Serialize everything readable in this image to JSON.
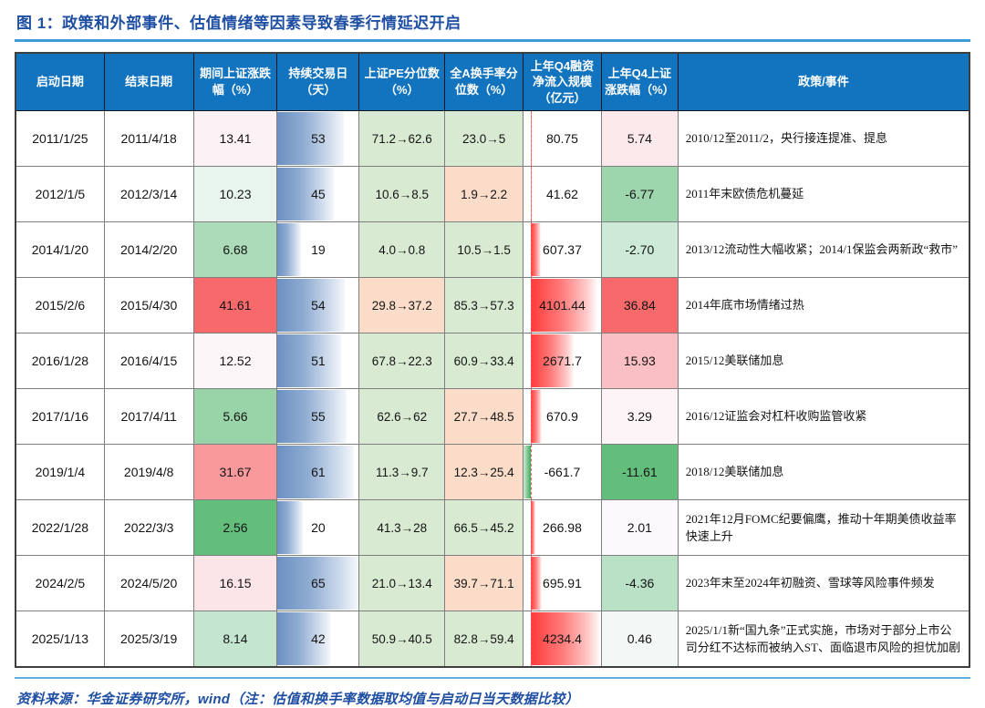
{
  "title": "图 1：政策和外部事件、估值情绪等因素导致春季行情延迟开启",
  "source_note": "资料来源：华金证券研究所，wind（注：估值和换手率数据取均值与启动日当天数据比较）",
  "colors": {
    "header_bg": "#1273BF",
    "title_text": "#1F4FA3",
    "accent_rule": "#3E9BD5",
    "scale_green": "#63BE7B",
    "scale_white": "#FCFCFF",
    "scale_red": "#F8696B",
    "cell_range_green": "#D9EAD3",
    "cell_range_salmon": "#FADCC8",
    "bar_blue": "#6C90C1",
    "bar_red": "#FF3A3A",
    "bar_negative_green": "#44A85C"
  },
  "bars": {
    "financing_axis_pct": 9
  },
  "chart_data": {
    "type": "table",
    "title": "图 1：政策和外部事件、估值情绪等因素导致春季行情延迟开启",
    "headers": [
      "启动日期",
      "结束日期",
      "期间上证涨跌幅（%）",
      "持续交易日（天）",
      "上证PE分位数（%）",
      "全A换手率分位数（%）",
      "上年Q4融资净流入规模（亿元）",
      "上年Q4上证涨跌幅（%）",
      "政策/事件"
    ],
    "rows": [
      {
        "start_date": "2011/1/25",
        "end_date": "2011/4/18",
        "change_pct": "13.41",
        "trading_days": "53",
        "pe_percentile": "71.2→62.6",
        "turnover_percentile": "23.0→5",
        "q4_financing_inflow": "80.75",
        "q4_change_pct": "5.74",
        "policy_event": "2010/12至2011/2，央行接连提准、提息"
      },
      {
        "start_date": "2012/1/5",
        "end_date": "2012/3/14",
        "change_pct": "10.23",
        "trading_days": "45",
        "pe_percentile": "10.6→8.5",
        "turnover_percentile": "1.9→2.2",
        "q4_financing_inflow": "41.62",
        "q4_change_pct": "-6.77",
        "policy_event": "2011年末欧债危机蔓延"
      },
      {
        "start_date": "2014/1/20",
        "end_date": "2014/2/20",
        "change_pct": "6.68",
        "trading_days": "19",
        "pe_percentile": "4.0→0.8",
        "turnover_percentile": "10.5→1.5",
        "q4_financing_inflow": "607.37",
        "q4_change_pct": "-2.70",
        "policy_event": "2013/12流动性大幅收紧；2014/1保监会两新政“救市”"
      },
      {
        "start_date": "2015/2/6",
        "end_date": "2015/4/30",
        "change_pct": "41.61",
        "trading_days": "54",
        "pe_percentile": "29.8→37.2",
        "turnover_percentile": "85.3→57.3",
        "q4_financing_inflow": "4101.44",
        "q4_change_pct": "36.84",
        "policy_event": "2014年底市场情绪过热"
      },
      {
        "start_date": "2016/1/28",
        "end_date": "2016/4/15",
        "change_pct": "12.52",
        "trading_days": "51",
        "pe_percentile": "67.8→22.3",
        "turnover_percentile": "60.9→33.4",
        "q4_financing_inflow": "2671.7",
        "q4_change_pct": "15.93",
        "policy_event": "2015/12美联储加息"
      },
      {
        "start_date": "2017/1/16",
        "end_date": "2017/4/11",
        "change_pct": "5.66",
        "trading_days": "55",
        "pe_percentile": "62.6→62",
        "turnover_percentile": "27.7→48.5",
        "q4_financing_inflow": "670.9",
        "q4_change_pct": "3.29",
        "policy_event": "2016/12证监会对杠杆收购监管收紧"
      },
      {
        "start_date": "2019/1/4",
        "end_date": "2019/4/8",
        "change_pct": "31.67",
        "trading_days": "61",
        "pe_percentile": "11.3→9.7",
        "turnover_percentile": "12.3→25.4",
        "q4_financing_inflow": "-661.7",
        "q4_change_pct": "-11.61",
        "policy_event": "2018/12美联储加息"
      },
      {
        "start_date": "2022/1/28",
        "end_date": "2022/3/3",
        "change_pct": "2.56",
        "trading_days": "20",
        "pe_percentile": "41.3→28",
        "turnover_percentile": "66.5→45.2",
        "q4_financing_inflow": "266.98",
        "q4_change_pct": "2.01",
        "policy_event": "2021年12月FOMC纪要偏鹰，推动十年期美债收益率快速上升"
      },
      {
        "start_date": "2024/2/5",
        "end_date": "2024/5/20",
        "change_pct": "16.15",
        "trading_days": "65",
        "pe_percentile": "21.0→13.4",
        "turnover_percentile": "39.7→71.1",
        "q4_financing_inflow": "695.91",
        "q4_change_pct": "-4.36",
        "policy_event": "2023年末至2024年初融资、雪球等风险事件频发"
      },
      {
        "start_date": "2025/1/13",
        "end_date": "2025/3/19",
        "change_pct": "8.14",
        "trading_days": "42",
        "pe_percentile": "50.9→40.5",
        "turnover_percentile": "82.8→59.4",
        "q4_financing_inflow": "4234.4",
        "q4_change_pct": "0.46",
        "policy_event": "2025/1/1新“国九条”正式实施，市场对于部分上市公司分红不达标而被纳入ST、面临退市风险的担忧加剧"
      }
    ]
  }
}
